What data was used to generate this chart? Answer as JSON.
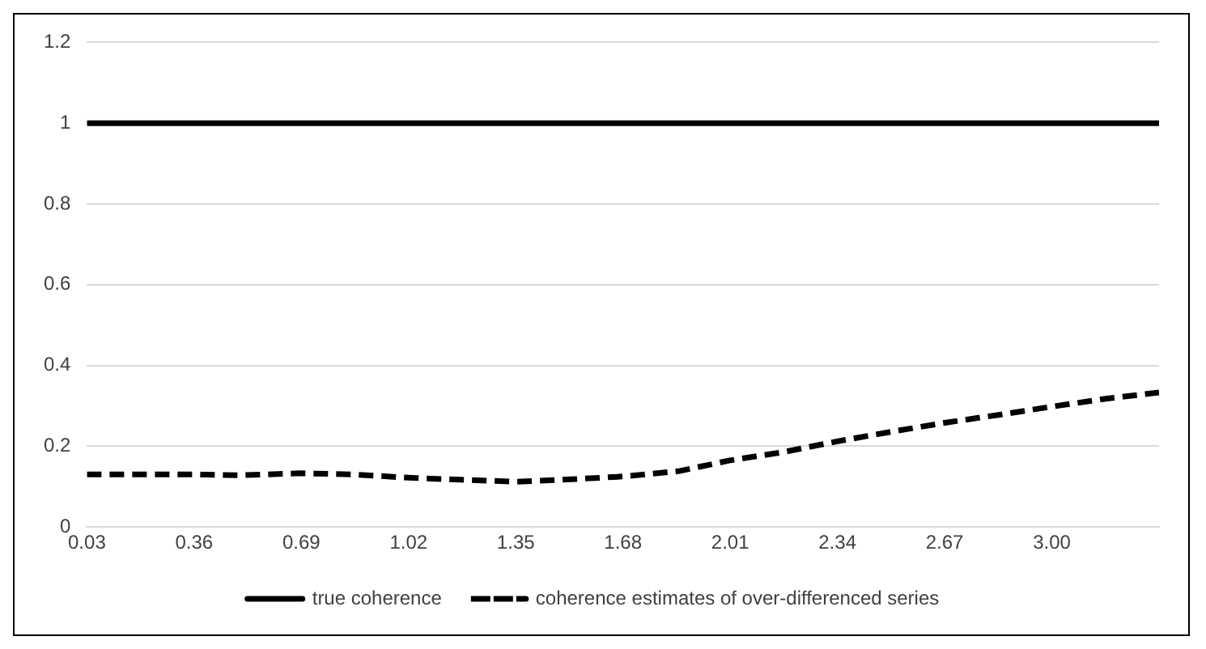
{
  "chart_data": {
    "type": "line",
    "xlim": [
      0.03,
      3.33
    ],
    "xticks": [
      0.03,
      0.36,
      0.69,
      1.02,
      1.35,
      1.68,
      2.01,
      2.34,
      2.67,
      {
        "value": 3,
        "label": "3.00"
      }
    ],
    "ylim": [
      0,
      1.2
    ],
    "yticks": [
      0,
      0.2,
      0.4,
      0.6,
      0.8,
      1,
      1.2
    ],
    "grid": "y",
    "legend": "bottom",
    "marker": "none",
    "series": [
      {
        "name": "true coherence",
        "color": "#000000",
        "line_style": "solid",
        "x": [
          0.03,
          3.33
        ],
        "values": [
          1,
          1
        ]
      },
      {
        "name": "coherence estimates of over-differenced series",
        "color": "#000000",
        "line_style": "dashed",
        "x": [
          0.03,
          0.2,
          0.36,
          0.5,
          0.69,
          0.85,
          1.02,
          1.18,
          1.35,
          1.52,
          1.68,
          1.85,
          2.01,
          2.17,
          2.34,
          2.5,
          2.67,
          2.84,
          3.0,
          3.17,
          3.33
        ],
        "values": [
          0.13,
          0.13,
          0.13,
          0.128,
          0.133,
          0.13,
          0.122,
          0.117,
          0.112,
          0.118,
          0.125,
          0.138,
          0.165,
          0.185,
          0.212,
          0.235,
          0.258,
          0.278,
          0.298,
          0.318,
          0.333
        ]
      }
    ]
  }
}
